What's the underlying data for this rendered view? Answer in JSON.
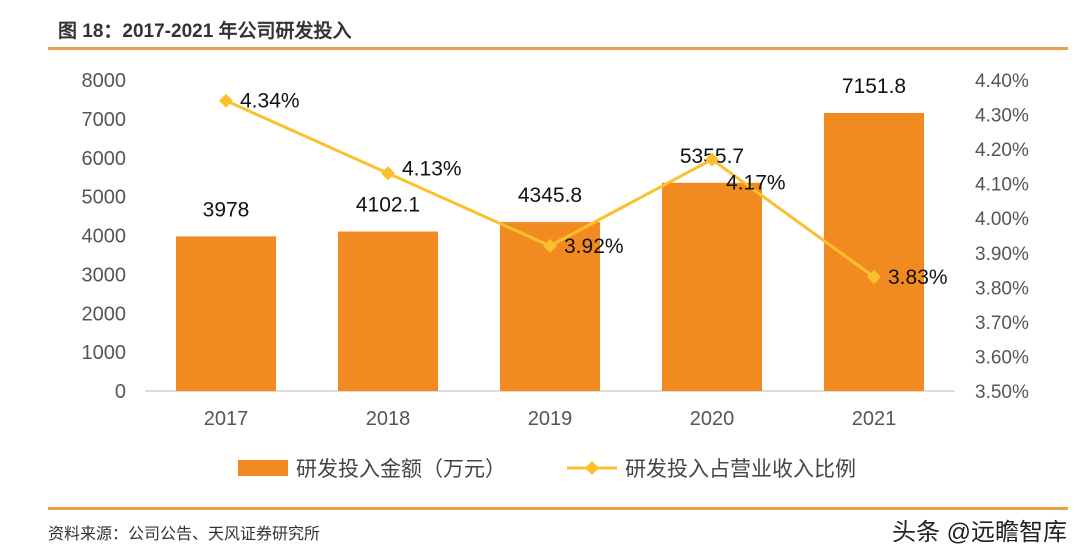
{
  "title": "图 18：2017-2021 年公司研发投入",
  "source": "资料来源：公司公告、天风证券研究所",
  "watermark": "头条 @远瞻智库",
  "chart_data": {
    "type": "bar+line",
    "categories": [
      "2017",
      "2018",
      "2019",
      "2020",
      "2021"
    ],
    "series": [
      {
        "name": "研发投入金额（万元）",
        "type": "bar",
        "axis": "left",
        "color": "#f28a22",
        "values": [
          3978,
          4102.1,
          4345.8,
          5355.7,
          7151.8
        ],
        "labels": [
          "3978",
          "4102.1",
          "4345.8",
          "5355.7",
          "7151.8"
        ]
      },
      {
        "name": "研发投入占营业收入比例",
        "type": "line",
        "axis": "right",
        "color": "#fbc02d",
        "values": [
          4.34,
          4.13,
          3.92,
          4.17,
          3.83
        ],
        "labels": [
          "4.34%",
          "4.13%",
          "3.92%",
          "4.17%",
          "3.83%"
        ]
      }
    ],
    "y_left": {
      "range": [
        0,
        8000
      ],
      "ticks": [
        "0",
        "1000",
        "2000",
        "3000",
        "4000",
        "5000",
        "6000",
        "7000",
        "8000"
      ]
    },
    "y_right": {
      "range": [
        3.5,
        4.4
      ],
      "ticks": [
        "3.50%",
        "3.60%",
        "3.70%",
        "3.80%",
        "3.90%",
        "4.00%",
        "4.10%",
        "4.20%",
        "4.30%",
        "4.40%"
      ]
    },
    "grid": false,
    "legend": "bottom"
  }
}
